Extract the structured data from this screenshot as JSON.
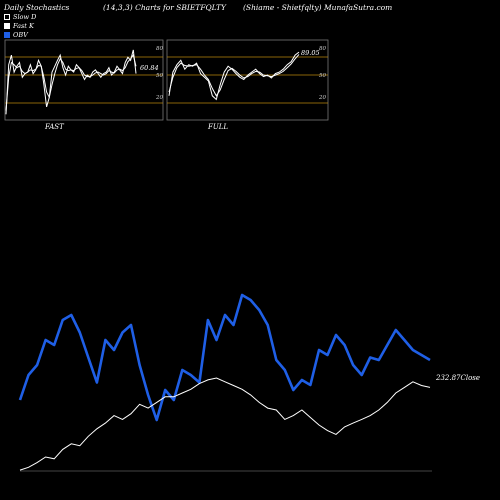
{
  "header": {
    "left": "Daily Stochastics",
    "mid": "(14,3,3) Charts for SBIETFQLTY",
    "right": "(Shiame - Shietfqlty) MunafaSutra.com"
  },
  "legend": [
    {
      "label": "Slow D",
      "color": "#ffffff"
    },
    {
      "label": "Fast K",
      "color": "#ffffff"
    },
    {
      "label": "OBV",
      "color": "#1f5fe6"
    }
  ],
  "colors": {
    "obv": "#1f5fe6",
    "price": "#ffffff",
    "guide": "#b8860b"
  },
  "chart_data": [
    {
      "type": "line",
      "panel": "FAST",
      "value_label": "60.84",
      "levels": [
        "80",
        "50",
        "20"
      ],
      "ylim": [
        0,
        100
      ],
      "series": [
        {
          "name": "Fast K",
          "values": [
            5,
            72,
            85,
            62,
            70,
            75,
            55,
            60,
            62,
            72,
            60,
            65,
            78,
            70,
            45,
            15,
            28,
            62,
            70,
            78,
            85,
            68,
            58,
            70,
            65,
            62,
            72,
            68,
            60,
            52,
            58,
            55,
            62,
            65,
            60,
            55,
            60,
            62,
            68,
            58,
            62,
            70,
            65,
            60,
            75,
            82,
            78,
            92,
            60
          ]
        },
        {
          "name": "Slow D",
          "values": [
            10,
            55,
            75,
            72,
            68,
            70,
            63,
            60,
            62,
            65,
            64,
            66,
            71,
            70,
            55,
            35,
            28,
            45,
            60,
            72,
            80,
            75,
            66,
            64,
            65,
            64,
            67,
            68,
            64,
            58,
            56,
            56,
            58,
            61,
            62,
            60,
            58,
            60,
            64,
            62,
            61,
            65,
            66,
            64,
            68,
            76,
            80,
            85,
            70
          ]
        }
      ]
    },
    {
      "type": "line",
      "panel": "FULL",
      "value_label": "89.05",
      "levels": [
        "80",
        "50",
        "20"
      ],
      "ylim": [
        0,
        100
      ],
      "series": [
        {
          "name": "Fast K",
          "values": [
            30,
            62,
            72,
            78,
            66,
            72,
            70,
            74,
            60,
            55,
            50,
            30,
            25,
            45,
            62,
            70,
            66,
            60,
            55,
            52,
            58,
            62,
            66,
            60,
            56,
            58,
            54,
            60,
            62,
            66,
            72,
            76,
            85,
            89
          ]
        },
        {
          "name": "Slow D",
          "values": [
            35,
            55,
            68,
            74,
            71,
            70,
            71,
            72,
            66,
            58,
            52,
            40,
            30,
            38,
            52,
            64,
            67,
            63,
            58,
            54,
            56,
            60,
            63,
            62,
            58,
            57,
            56,
            58,
            60,
            63,
            68,
            73,
            80,
            86
          ]
        }
      ]
    },
    {
      "type": "line",
      "panel": "OBV",
      "value_label": "232.87Close",
      "series": [
        {
          "name": "OBV",
          "values": [
            38,
            48,
            52,
            62,
            60,
            70,
            72,
            65,
            55,
            45,
            62,
            58,
            65,
            68,
            52,
            40,
            30,
            42,
            38,
            50,
            48,
            45,
            70,
            62,
            72,
            68,
            80,
            78,
            74,
            68,
            54,
            50,
            42,
            46,
            44,
            58,
            56,
            64,
            60,
            52,
            48,
            55,
            54,
            60,
            66,
            62,
            58,
            56,
            54
          ]
        },
        {
          "name": "Close",
          "values": [
            2,
            5,
            10,
            16,
            14,
            24,
            30,
            28,
            38,
            46,
            52,
            60,
            56,
            62,
            72,
            68,
            74,
            80,
            80,
            84,
            88,
            94,
            98,
            100,
            96,
            92,
            88,
            82,
            74,
            68,
            66,
            56,
            60,
            66,
            58,
            50,
            44,
            40,
            48,
            52,
            56,
            60,
            66,
            74,
            84,
            90,
            96,
            92,
            90
          ]
        }
      ]
    }
  ],
  "obv_close_index_values": {
    "obv_y": [
      250,
      300
    ],
    "price_y": [
      0,
      130
    ]
  }
}
